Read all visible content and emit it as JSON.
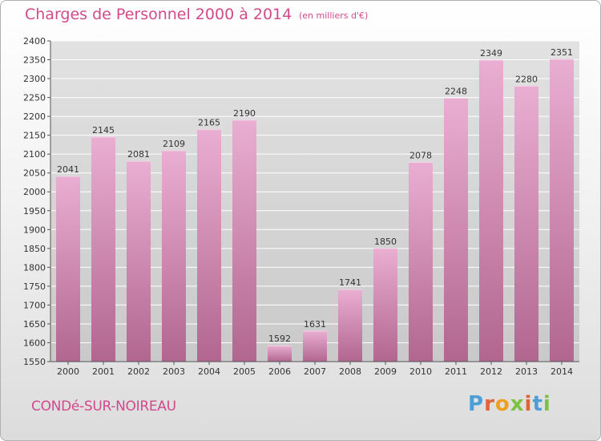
{
  "header": {
    "title": "Charges de Personnel 2000 à 2014",
    "subtitle": "(en milliers d'€)"
  },
  "footer": {
    "town": "CONDé-SUR-NOIREAU",
    "logo": "Proxiti"
  },
  "colors": {
    "title": "#d04a8c",
    "bar_light": "#e8a9cf",
    "bar_dark": "#b5648e",
    "grid": "#ffffff",
    "plot_bg": "#dcdcdc"
  },
  "chart_data": {
    "type": "bar",
    "title": "Charges de Personnel 2000 à 2014",
    "subtitle": "(en milliers d'€)",
    "xlabel": "",
    "ylabel": "",
    "categories": [
      "2000",
      "2001",
      "2002",
      "2003",
      "2004",
      "2005",
      "2006",
      "2007",
      "2008",
      "2009",
      "2010",
      "2011",
      "2012",
      "2013",
      "2014"
    ],
    "values": [
      2041,
      2145,
      2081,
      2109,
      2165,
      2190,
      1592,
      1631,
      1741,
      1850,
      2078,
      2248,
      2349,
      2280,
      2351
    ],
    "ylim": [
      1550,
      2400
    ],
    "yticks": [
      1550,
      1600,
      1650,
      1700,
      1750,
      1800,
      1850,
      1900,
      1950,
      2000,
      2050,
      2100,
      2150,
      2200,
      2250,
      2300,
      2350,
      2400
    ],
    "grid": true,
    "data_labels": true
  }
}
